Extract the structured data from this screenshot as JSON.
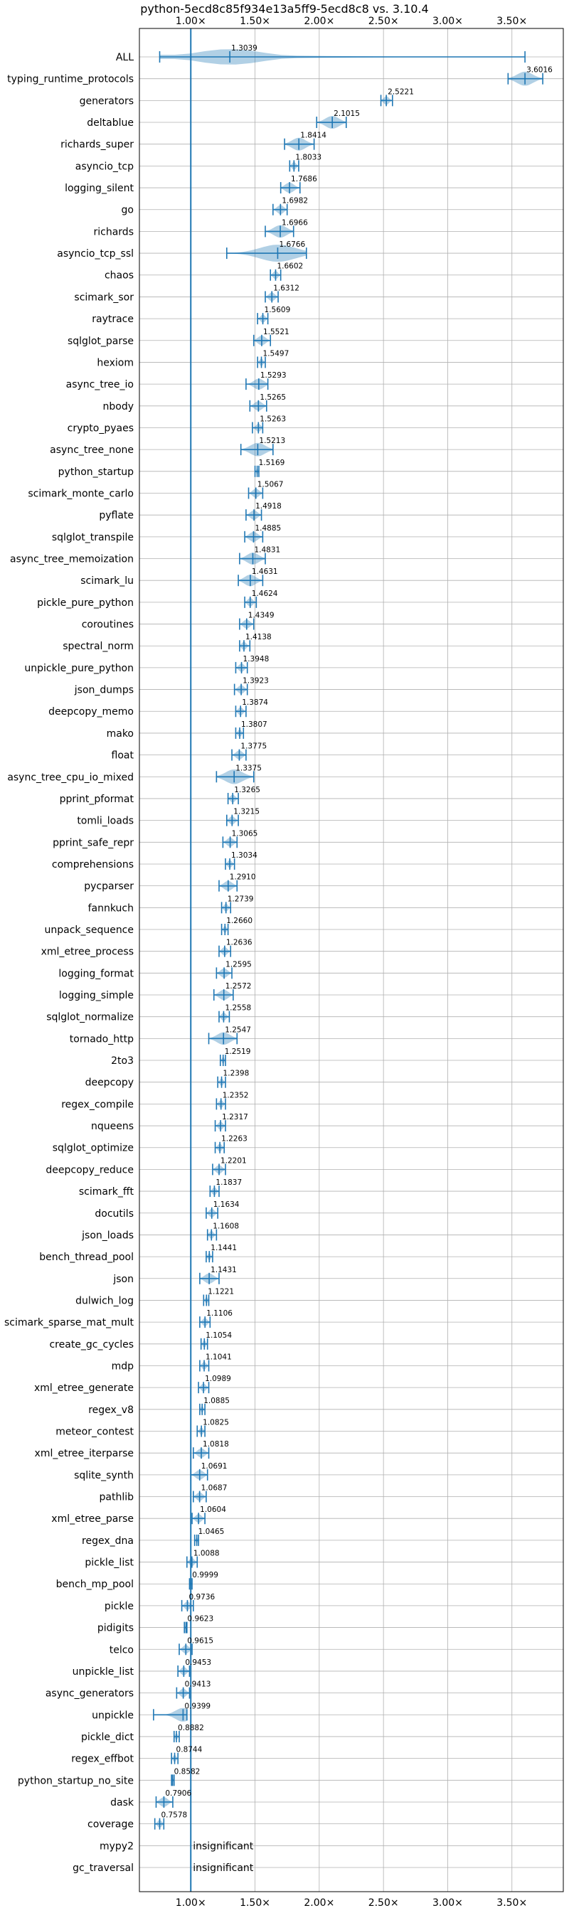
{
  "chart_data": {
    "type": "violin",
    "title": "python-5ecd8c85f934e13a5ff9-5ecd8c8 vs. 3.10.4",
    "xlabel": "",
    "ylabel": "",
    "xlim": [
      0.6,
      3.9
    ],
    "xticks": [
      {
        "value": 1.0,
        "label": "1.00×"
      },
      {
        "value": 1.5,
        "label": "1.50×"
      },
      {
        "value": 2.0,
        "label": "2.00×"
      },
      {
        "value": 2.5,
        "label": "2.50×"
      },
      {
        "value": 3.0,
        "label": "3.00×"
      },
      {
        "value": 3.5,
        "label": "3.50×"
      }
    ],
    "reference_line": 1.0,
    "grid": true,
    "insignificant_label": "insignificant",
    "benchmarks": [
      {
        "name": "ALL",
        "value": 1.3039,
        "label": "1.3039",
        "min": 0.7578,
        "max": 3.6016
      },
      {
        "name": "typing_runtime_protocols",
        "value": 3.6016,
        "label": "3.6016",
        "min": 3.47,
        "max": 3.74
      },
      {
        "name": "generators",
        "value": 2.5221,
        "label": "2.5221",
        "min": 2.48,
        "max": 2.57
      },
      {
        "name": "deltablue",
        "value": 2.1015,
        "label": "2.1015",
        "min": 1.98,
        "max": 2.21
      },
      {
        "name": "richards_super",
        "value": 1.8414,
        "label": "1.8414",
        "min": 1.73,
        "max": 1.96
      },
      {
        "name": "asyncio_tcp",
        "value": 1.8033,
        "label": "1.8033",
        "min": 1.77,
        "max": 1.84
      },
      {
        "name": "logging_silent",
        "value": 1.7686,
        "label": "1.7686",
        "min": 1.7,
        "max": 1.85
      },
      {
        "name": "go",
        "value": 1.6982,
        "label": "1.6982",
        "min": 1.64,
        "max": 1.75
      },
      {
        "name": "richards",
        "value": 1.6966,
        "label": "1.6966",
        "min": 1.58,
        "max": 1.8
      },
      {
        "name": "asyncio_tcp_ssl",
        "value": 1.6766,
        "label": "1.6766",
        "min": 1.28,
        "max": 1.9
      },
      {
        "name": "chaos",
        "value": 1.6602,
        "label": "1.6602",
        "min": 1.62,
        "max": 1.7
      },
      {
        "name": "scimark_sor",
        "value": 1.6312,
        "label": "1.6312",
        "min": 1.58,
        "max": 1.68
      },
      {
        "name": "raytrace",
        "value": 1.5609,
        "label": "1.5609",
        "min": 1.52,
        "max": 1.6
      },
      {
        "name": "sqlglot_parse",
        "value": 1.5521,
        "label": "1.5521",
        "min": 1.49,
        "max": 1.62
      },
      {
        "name": "hexiom",
        "value": 1.5497,
        "label": "1.5497",
        "min": 1.52,
        "max": 1.58
      },
      {
        "name": "async_tree_io",
        "value": 1.5293,
        "label": "1.5293",
        "min": 1.43,
        "max": 1.6
      },
      {
        "name": "nbody",
        "value": 1.5265,
        "label": "1.5265",
        "min": 1.46,
        "max": 1.59
      },
      {
        "name": "crypto_pyaes",
        "value": 1.5263,
        "label": "1.5263",
        "min": 1.48,
        "max": 1.56
      },
      {
        "name": "async_tree_none",
        "value": 1.5213,
        "label": "1.5213",
        "min": 1.39,
        "max": 1.64
      },
      {
        "name": "python_startup",
        "value": 1.5169,
        "label": "1.5169",
        "min": 1.5,
        "max": 1.53
      },
      {
        "name": "scimark_monte_carlo",
        "value": 1.5067,
        "label": "1.5067",
        "min": 1.45,
        "max": 1.56
      },
      {
        "name": "pyflate",
        "value": 1.4918,
        "label": "1.4918",
        "min": 1.43,
        "max": 1.55
      },
      {
        "name": "sqlglot_transpile",
        "value": 1.4885,
        "label": "1.4885",
        "min": 1.42,
        "max": 1.56
      },
      {
        "name": "async_tree_memoization",
        "value": 1.4831,
        "label": "1.4831",
        "min": 1.38,
        "max": 1.58
      },
      {
        "name": "scimark_lu",
        "value": 1.4631,
        "label": "1.4631",
        "min": 1.37,
        "max": 1.56
      },
      {
        "name": "pickle_pure_python",
        "value": 1.4624,
        "label": "1.4624",
        "min": 1.42,
        "max": 1.51
      },
      {
        "name": "coroutines",
        "value": 1.4349,
        "label": "1.4349",
        "min": 1.38,
        "max": 1.49
      },
      {
        "name": "spectral_norm",
        "value": 1.4138,
        "label": "1.4138",
        "min": 1.38,
        "max": 1.46
      },
      {
        "name": "unpickle_pure_python",
        "value": 1.3948,
        "label": "1.3948",
        "min": 1.35,
        "max": 1.44
      },
      {
        "name": "json_dumps",
        "value": 1.3923,
        "label": "1.3923",
        "min": 1.34,
        "max": 1.44
      },
      {
        "name": "deepcopy_memo",
        "value": 1.3874,
        "label": "1.3874",
        "min": 1.35,
        "max": 1.43
      },
      {
        "name": "mako",
        "value": 1.3807,
        "label": "1.3807",
        "min": 1.35,
        "max": 1.41
      },
      {
        "name": "float",
        "value": 1.3775,
        "label": "1.3775",
        "min": 1.32,
        "max": 1.43
      },
      {
        "name": "async_tree_cpu_io_mixed",
        "value": 1.3375,
        "label": "1.3375",
        "min": 1.2,
        "max": 1.49
      },
      {
        "name": "pprint_pformat",
        "value": 1.3265,
        "label": "1.3265",
        "min": 1.29,
        "max": 1.37
      },
      {
        "name": "tomli_loads",
        "value": 1.3215,
        "label": "1.3215",
        "min": 1.28,
        "max": 1.37
      },
      {
        "name": "pprint_safe_repr",
        "value": 1.3065,
        "label": "1.3065",
        "min": 1.25,
        "max": 1.36
      },
      {
        "name": "comprehensions",
        "value": 1.3034,
        "label": "1.3034",
        "min": 1.27,
        "max": 1.34
      },
      {
        "name": "pycparser",
        "value": 1.291,
        "label": "1.2910",
        "min": 1.22,
        "max": 1.36
      },
      {
        "name": "fannkuch",
        "value": 1.2739,
        "label": "1.2739",
        "min": 1.24,
        "max": 1.31
      },
      {
        "name": "unpack_sequence",
        "value": 1.266,
        "label": "1.2660",
        "min": 1.24,
        "max": 1.29
      },
      {
        "name": "xml_etree_process",
        "value": 1.2636,
        "label": "1.2636",
        "min": 1.22,
        "max": 1.31
      },
      {
        "name": "logging_format",
        "value": 1.2595,
        "label": "1.2595",
        "min": 1.2,
        "max": 1.32
      },
      {
        "name": "logging_simple",
        "value": 1.2572,
        "label": "1.2572",
        "min": 1.18,
        "max": 1.33
      },
      {
        "name": "sqlglot_normalize",
        "value": 1.2558,
        "label": "1.2558",
        "min": 1.22,
        "max": 1.3
      },
      {
        "name": "tornado_http",
        "value": 1.2547,
        "label": "1.2547",
        "min": 1.14,
        "max": 1.36
      },
      {
        "name": "2to3",
        "value": 1.2519,
        "label": "1.2519",
        "min": 1.23,
        "max": 1.27
      },
      {
        "name": "deepcopy",
        "value": 1.2398,
        "label": "1.2398",
        "min": 1.21,
        "max": 1.27
      },
      {
        "name": "regex_compile",
        "value": 1.2352,
        "label": "1.2352",
        "min": 1.2,
        "max": 1.27
      },
      {
        "name": "nqueens",
        "value": 1.2317,
        "label": "1.2317",
        "min": 1.19,
        "max": 1.27
      },
      {
        "name": "sqlglot_optimize",
        "value": 1.2263,
        "label": "1.2263",
        "min": 1.19,
        "max": 1.26
      },
      {
        "name": "deepcopy_reduce",
        "value": 1.2201,
        "label": "1.2201",
        "min": 1.17,
        "max": 1.27
      },
      {
        "name": "scimark_fft",
        "value": 1.1837,
        "label": "1.1837",
        "min": 1.15,
        "max": 1.22
      },
      {
        "name": "docutils",
        "value": 1.1634,
        "label": "1.1634",
        "min": 1.12,
        "max": 1.21
      },
      {
        "name": "json_loads",
        "value": 1.1608,
        "label": "1.1608",
        "min": 1.13,
        "max": 1.2
      },
      {
        "name": "bench_thread_pool",
        "value": 1.1441,
        "label": "1.1441",
        "min": 1.12,
        "max": 1.17
      },
      {
        "name": "json",
        "value": 1.1431,
        "label": "1.1431",
        "min": 1.07,
        "max": 1.22
      },
      {
        "name": "dulwich_log",
        "value": 1.1221,
        "label": "1.1221",
        "min": 1.1,
        "max": 1.14
      },
      {
        "name": "scimark_sparse_mat_mult",
        "value": 1.1106,
        "label": "1.1106",
        "min": 1.07,
        "max": 1.15
      },
      {
        "name": "create_gc_cycles",
        "value": 1.1054,
        "label": "1.1054",
        "min": 1.08,
        "max": 1.13
      },
      {
        "name": "mdp",
        "value": 1.1041,
        "label": "1.1041",
        "min": 1.07,
        "max": 1.14
      },
      {
        "name": "xml_etree_generate",
        "value": 1.0989,
        "label": "1.0989",
        "min": 1.06,
        "max": 1.14
      },
      {
        "name": "regex_v8",
        "value": 1.0885,
        "label": "1.0885",
        "min": 1.07,
        "max": 1.11
      },
      {
        "name": "meteor_contest",
        "value": 1.0825,
        "label": "1.0825",
        "min": 1.05,
        "max": 1.11
      },
      {
        "name": "xml_etree_iterparse",
        "value": 1.0818,
        "label": "1.0818",
        "min": 1.02,
        "max": 1.14
      },
      {
        "name": "sqlite_synth",
        "value": 1.0691,
        "label": "1.0691",
        "min": 1.0,
        "max": 1.13
      },
      {
        "name": "pathlib",
        "value": 1.0687,
        "label": "1.0687",
        "min": 1.02,
        "max": 1.12
      },
      {
        "name": "xml_etree_parse",
        "value": 1.0604,
        "label": "1.0604",
        "min": 1.01,
        "max": 1.11
      },
      {
        "name": "regex_dna",
        "value": 1.0465,
        "label": "1.0465",
        "min": 1.03,
        "max": 1.06
      },
      {
        "name": "pickle_list",
        "value": 1.0088,
        "label": "1.0088",
        "min": 0.97,
        "max": 1.05
      },
      {
        "name": "bench_mp_pool",
        "value": 0.9999,
        "label": "0.9999",
        "min": 0.99,
        "max": 1.01
      },
      {
        "name": "pickle",
        "value": 0.9736,
        "label": "0.9736",
        "min": 0.93,
        "max": 1.02
      },
      {
        "name": "pidigits",
        "value": 0.9623,
        "label": "0.9623",
        "min": 0.95,
        "max": 0.97
      },
      {
        "name": "telco",
        "value": 0.9615,
        "label": "0.9615",
        "min": 0.91,
        "max": 1.01
      },
      {
        "name": "unpickle_list",
        "value": 0.9453,
        "label": "0.9453",
        "min": 0.9,
        "max": 0.99
      },
      {
        "name": "async_generators",
        "value": 0.9413,
        "label": "0.9413",
        "min": 0.89,
        "max": 0.99
      },
      {
        "name": "unpickle",
        "value": 0.9399,
        "label": "0.9399",
        "min": 0.71,
        "max": 0.97
      },
      {
        "name": "pickle_dict",
        "value": 0.8882,
        "label": "0.8882",
        "min": 0.87,
        "max": 0.91
      },
      {
        "name": "regex_effbot",
        "value": 0.8744,
        "label": "0.8744",
        "min": 0.85,
        "max": 0.9
      },
      {
        "name": "python_startup_no_site",
        "value": 0.8582,
        "label": "0.8582",
        "min": 0.85,
        "max": 0.87
      },
      {
        "name": "dask",
        "value": 0.7906,
        "label": "0.7906",
        "min": 0.73,
        "max": 0.86
      },
      {
        "name": "coverage",
        "value": 0.7578,
        "label": "0.7578",
        "min": 0.72,
        "max": 0.79
      },
      {
        "name": "mypy2",
        "value": null,
        "label": "insignificant"
      },
      {
        "name": "gc_traversal",
        "value": null,
        "label": "insignificant"
      }
    ]
  }
}
